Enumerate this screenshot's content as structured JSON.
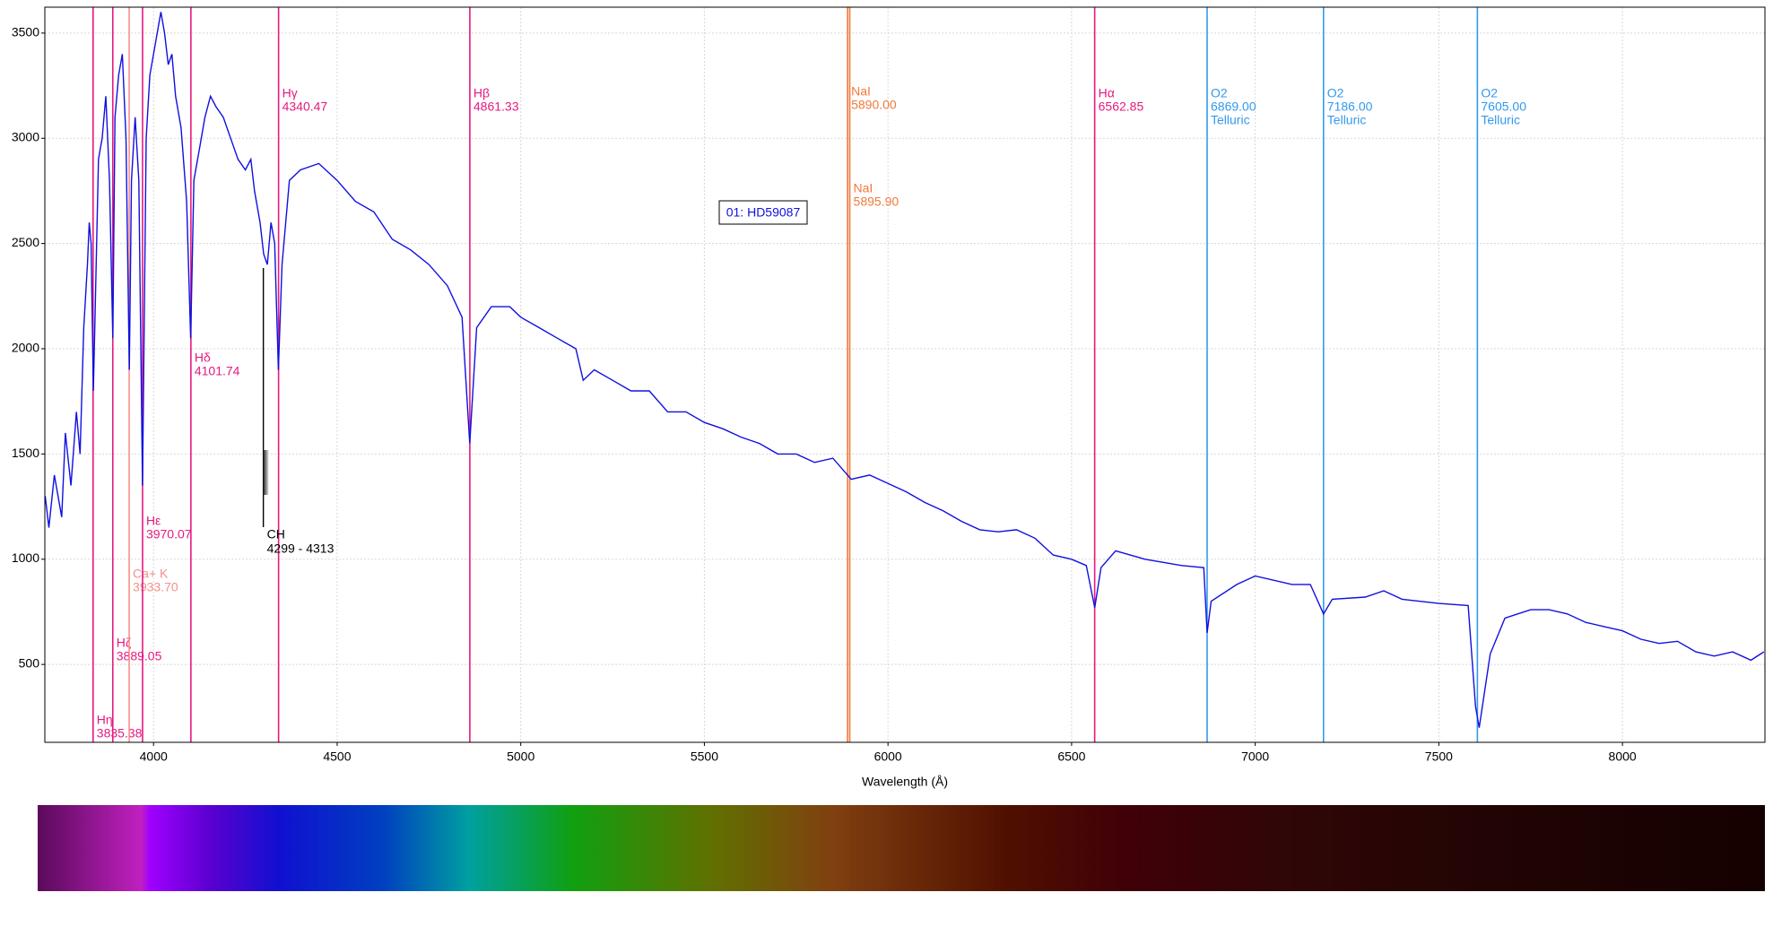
{
  "chart_data": {
    "type": "line",
    "xlabel": "Wavelength (Å)",
    "xlim": [
      3704,
      8388
    ],
    "ylim": [
      130,
      3623
    ],
    "xticks": [
      4000,
      4500,
      5000,
      5500,
      6000,
      6500,
      7000,
      7500,
      8000
    ],
    "yticks": [
      500,
      1000,
      1500,
      2000,
      2500,
      3000,
      3500
    ],
    "grid": true,
    "x": [
      3705,
      3715,
      3730,
      3750,
      3760,
      3775,
      3790,
      3800,
      3810,
      3820,
      3825,
      3830,
      3836,
      3840,
      3850,
      3860,
      3870,
      3880,
      3889,
      3895,
      3905,
      3915,
      3925,
      3934,
      3940,
      3950,
      3960,
      3970,
      3980,
      3990,
      4000,
      4020,
      4030,
      4040,
      4050,
      4060,
      4075,
      4090,
      4101,
      4110,
      4125,
      4140,
      4155,
      4170,
      4190,
      4210,
      4230,
      4250,
      4265,
      4275,
      4290,
      4300,
      4310,
      4320,
      4330,
      4340,
      4350,
      4370,
      4400,
      4450,
      4500,
      4550,
      4600,
      4650,
      4700,
      4750,
      4800,
      4840,
      4861,
      4880,
      4920,
      4970,
      5000,
      5050,
      5100,
      5150,
      5170,
      5200,
      5250,
      5300,
      5350,
      5400,
      5450,
      5500,
      5550,
      5600,
      5650,
      5700,
      5750,
      5800,
      5850,
      5890,
      5900,
      5950,
      6000,
      6050,
      6100,
      6150,
      6200,
      6250,
      6300,
      6350,
      6400,
      6450,
      6500,
      6540,
      6563,
      6580,
      6620,
      6700,
      6800,
      6860,
      6869,
      6880,
      6950,
      7000,
      7100,
      7150,
      7186,
      7210,
      7300,
      7350,
      7400,
      7500,
      7580,
      7600,
      7610,
      7640,
      7680,
      7750,
      7800,
      7850,
      7900,
      7950,
      8000,
      8050,
      8100,
      8150,
      8200,
      8250,
      8300,
      8350,
      8385
    ],
    "series": [
      {
        "name": "01: HD59087",
        "color": "#1010e0",
        "values": [
          1300,
          1150,
          1400,
          1200,
          1600,
          1350,
          1700,
          1500,
          2100,
          2400,
          2600,
          2500,
          1800,
          2100,
          2900,
          3000,
          3200,
          2800,
          2050,
          3100,
          3300,
          3400,
          3000,
          1900,
          2800,
          3100,
          2800,
          1350,
          3000,
          3300,
          3400,
          3600,
          3500,
          3350,
          3400,
          3200,
          3050,
          2700,
          2050,
          2800,
          2950,
          3100,
          3200,
          3150,
          3100,
          3000,
          2900,
          2850,
          2900,
          2750,
          2600,
          2450,
          2400,
          2600,
          2500,
          1900,
          2400,
          2800,
          2850,
          2880,
          2800,
          2700,
          2650,
          2520,
          2470,
          2400,
          2300,
          2150,
          1550,
          2100,
          2200,
          2200,
          2150,
          2100,
          2050,
          2000,
          1850,
          1900,
          1850,
          1800,
          1800,
          1700,
          1700,
          1650,
          1620,
          1580,
          1550,
          1500,
          1500,
          1460,
          1480,
          1400,
          1380,
          1400,
          1360,
          1320,
          1270,
          1230,
          1180,
          1140,
          1130,
          1140,
          1100,
          1020,
          1000,
          970,
          770,
          960,
          1040,
          1000,
          970,
          960,
          650,
          800,
          880,
          920,
          880,
          880,
          740,
          810,
          820,
          850,
          810,
          790,
          780,
          300,
          200,
          550,
          720,
          760,
          760,
          740,
          700,
          680,
          660,
          620,
          600,
          610,
          560,
          540,
          560,
          520,
          560
        ]
      }
    ],
    "annotations": [
      {
        "name": "Hη",
        "x": 3835.38,
        "color": "#e6197f"
      },
      {
        "name": "Hζ",
        "x": 3889.05,
        "color": "#e6197f"
      },
      {
        "name": "Ca+ K",
        "x": 3933.7,
        "x_label": "3933.70",
        "color": "#f4908c"
      },
      {
        "name": "Hε",
        "x": 3970.07,
        "color": "#e6197f"
      },
      {
        "name": "Hδ",
        "x": 4101.74,
        "color": "#e6197f"
      },
      {
        "name": "Hγ",
        "x": 4340.47,
        "color": "#e6197f"
      },
      {
        "name": "Hβ",
        "x": 4861.33,
        "color": "#e6197f"
      },
      {
        "name": "NaI",
        "x": 5890,
        "x_label": "5890.00",
        "color": "#f07a3a"
      },
      {
        "name": "NaI",
        "x": 5895.9,
        "x_label": "5895.90",
        "color": "#f07a3a"
      },
      {
        "name": "Hα",
        "x": 6562.85,
        "color": "#e6197f"
      },
      {
        "name": "O2",
        "x": 6869,
        "x_label": "6869.00",
        "note": "Telluric",
        "color": "#3399ee"
      },
      {
        "name": "O2",
        "x": 7186,
        "x_label": "7186.00",
        "note": "Telluric",
        "color": "#3399ee"
      },
      {
        "name": "O2",
        "x": 7605,
        "x_label": "7605.00",
        "note": "Telluric",
        "color": "#3399ee"
      }
    ],
    "band": {
      "name": "CH",
      "range": [
        4299,
        4313
      ],
      "range_label": "4299 - 4313",
      "color": "#000000"
    }
  }
}
